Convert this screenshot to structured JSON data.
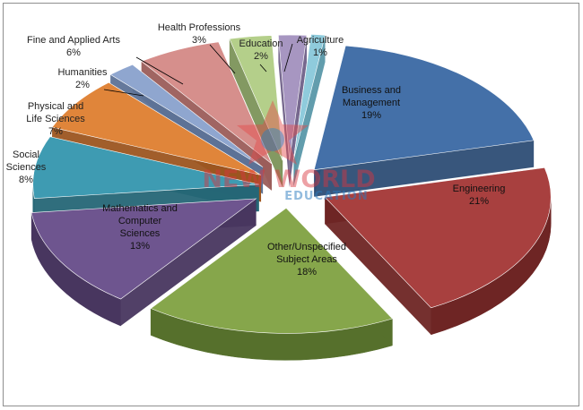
{
  "chart_data": {
    "type": "pie",
    "style": "3d-exploded",
    "slices": [
      {
        "label": "Business and Management",
        "value": 19,
        "pct_label": "19%",
        "color": "#4470a8",
        "side": "#2d4d75",
        "label_pos": "inside"
      },
      {
        "label": "Engineering",
        "value": 21,
        "pct_label": "21%",
        "color": "#a8403f",
        "side": "#6e2524",
        "label_pos": "inside"
      },
      {
        "label": "Other/Unspecified Subject Areas",
        "value": 18,
        "pct_label": "18%",
        "color": "#86a64b",
        "side": "#56702c",
        "label_pos": "inside"
      },
      {
        "label": "Mathematics and Computer Sciences",
        "value": 13,
        "pct_label": "13%",
        "color": "#6e558f",
        "side": "#48365f",
        "label_pos": "inside"
      },
      {
        "label": "Social Sciences",
        "value": 8,
        "pct_label": "8%",
        "color": "#3e9bb2",
        "side": "#256676",
        "label_pos": "outside"
      },
      {
        "label": "Physical and Life Sciences",
        "value": 7,
        "pct_label": "7%",
        "color": "#e0853a",
        "side": "#9c5520",
        "label_pos": "outside"
      },
      {
        "label": "Humanities",
        "value": 2,
        "pct_label": "2%",
        "color": "#8fa6cf",
        "side": "#5d7296",
        "label_pos": "outside"
      },
      {
        "label": "Fine and Applied Arts",
        "value": 6,
        "pct_label": "6%",
        "color": "#d68f8c",
        "side": "#9b5d5a",
        "label_pos": "outside"
      },
      {
        "label": "Health Professions",
        "value": 3,
        "pct_label": "3%",
        "color": "#b4cf8a",
        "side": "#7c945a",
        "label_pos": "outside"
      },
      {
        "label": "Education",
        "value": 2,
        "pct_label": "2%",
        "color": "#a796c1",
        "side": "#6f6088",
        "label_pos": "outside"
      },
      {
        "label": "Agriculture",
        "value": 1,
        "pct_label": "1%",
        "color": "#8fcbdc",
        "side": "#5a98a9",
        "label_pos": "outside"
      }
    ],
    "legend": "none",
    "watermark": {
      "line1": "NEW WORLD",
      "line2": "EDUCATION"
    }
  }
}
